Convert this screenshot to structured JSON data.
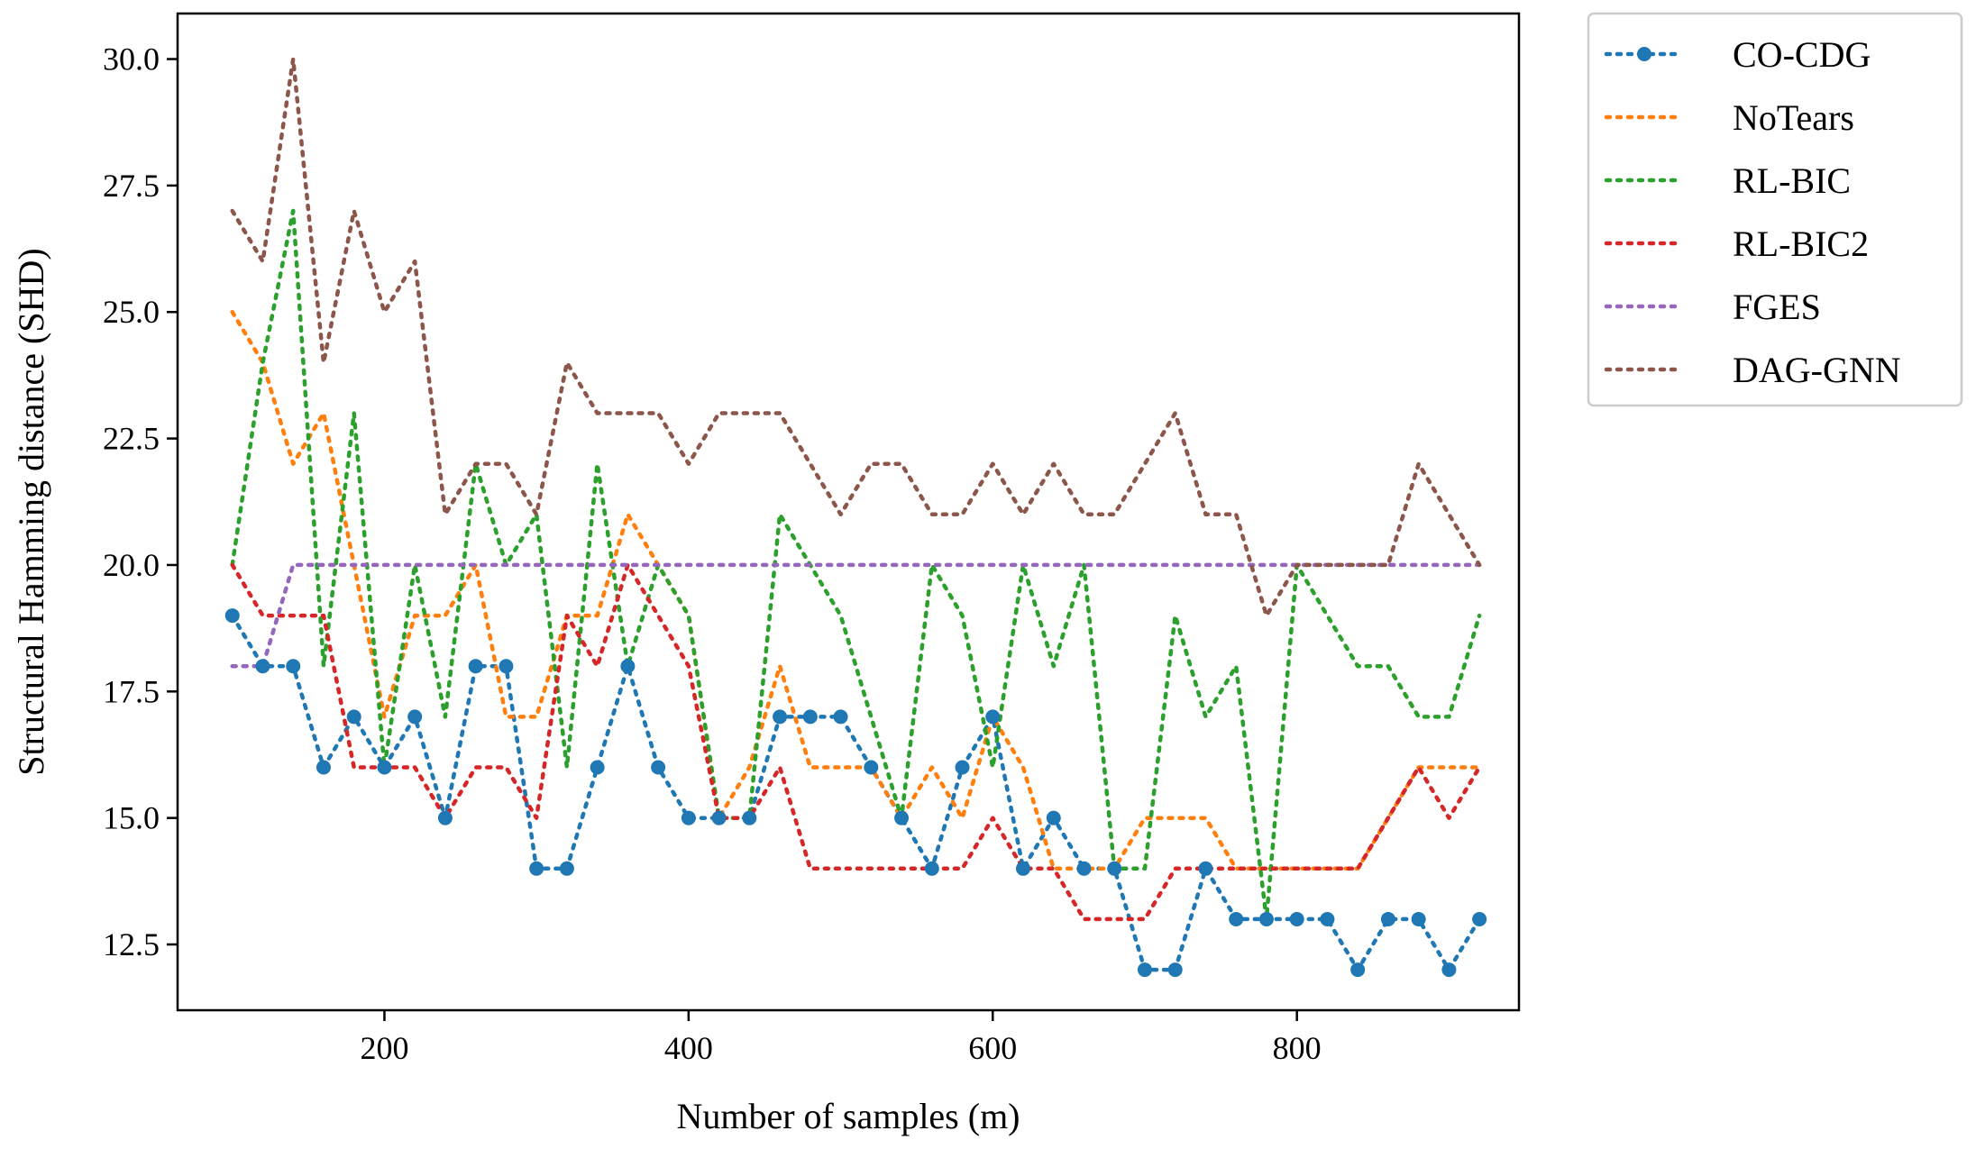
{
  "chart_data": {
    "type": "line",
    "title": "",
    "xlabel": "Number of samples (m)",
    "ylabel": "Structural Hamming distance (SHD)",
    "xlim": [
      64,
      946
    ],
    "ylim": [
      11.2,
      30.9
    ],
    "xticks": [
      200,
      400,
      600,
      800
    ],
    "yticks": [
      12.5,
      15.0,
      17.5,
      20.0,
      22.5,
      25.0,
      27.5,
      30.0
    ],
    "xtick_labels": [
      "200",
      "400",
      "600",
      "800"
    ],
    "ytick_labels": [
      "12.5",
      "15.0",
      "17.5",
      "20.0",
      "22.5",
      "25.0",
      "27.5",
      "30.0"
    ],
    "legend_position": "outside upper right",
    "x": [
      100,
      120,
      140,
      160,
      180,
      200,
      220,
      240,
      260,
      280,
      300,
      320,
      340,
      360,
      380,
      400,
      420,
      440,
      460,
      480,
      500,
      520,
      540,
      560,
      580,
      600,
      620,
      640,
      660,
      680,
      700,
      720,
      740,
      760,
      780,
      800,
      820,
      840,
      860,
      880,
      900,
      920
    ],
    "series": [
      {
        "name": "CO-CDG",
        "color": "#1f77b4",
        "markers": true,
        "values": [
          19,
          18,
          18,
          16,
          17,
          16,
          17,
          15,
          18,
          18,
          14,
          14,
          16,
          18,
          16,
          15,
          15,
          15,
          17,
          17,
          17,
          16,
          15,
          14,
          16,
          17,
          14,
          15,
          14,
          14,
          12,
          12,
          14,
          13,
          13,
          13,
          13,
          12,
          13,
          13,
          12,
          13
        ]
      },
      {
        "name": "NoTears",
        "color": "#ff7f0e",
        "markers": false,
        "values": [
          25,
          24,
          22,
          23,
          20,
          17,
          19,
          19,
          20,
          17,
          17,
          19,
          19,
          21,
          20,
          19,
          15,
          16,
          18,
          16,
          16,
          16,
          15,
          16,
          15,
          17,
          16,
          14,
          14,
          14,
          15,
          15,
          15,
          14,
          14,
          14,
          14,
          14,
          15,
          16,
          16,
          16
        ]
      },
      {
        "name": "RL-BIC",
        "color": "#2ca02c",
        "markers": false,
        "values": [
          20,
          24,
          27,
          18,
          23,
          16,
          20,
          17,
          22,
          20,
          21,
          16,
          22,
          18,
          20,
          19,
          15,
          15,
          21,
          20,
          19,
          17,
          15,
          20,
          19,
          16,
          20,
          18,
          20,
          14,
          14,
          19,
          17,
          18,
          13,
          20,
          19,
          18,
          18,
          17,
          17,
          19
        ]
      },
      {
        "name": "RL-BIC2",
        "color": "#d62728",
        "markers": false,
        "values": [
          20,
          19,
          19,
          19,
          16,
          16,
          16,
          15,
          16,
          16,
          15,
          19,
          18,
          20,
          19,
          18,
          15,
          15,
          16,
          14,
          14,
          14,
          14,
          14,
          14,
          15,
          14,
          14,
          13,
          13,
          13,
          14,
          14,
          14,
          14,
          14,
          14,
          14,
          15,
          16,
          15,
          16
        ]
      },
      {
        "name": "FGES",
        "color": "#9467bd",
        "markers": false,
        "values": [
          18,
          18,
          20,
          20,
          20,
          20,
          20,
          20,
          20,
          20,
          20,
          20,
          20,
          20,
          20,
          20,
          20,
          20,
          20,
          20,
          20,
          20,
          20,
          20,
          20,
          20,
          20,
          20,
          20,
          20,
          20,
          20,
          20,
          20,
          20,
          20,
          20,
          20,
          20,
          20,
          20,
          20
        ]
      },
      {
        "name": "DAG-GNN",
        "color": "#8c564b",
        "markers": false,
        "values": [
          27,
          26,
          30,
          24,
          27,
          25,
          26,
          21,
          22,
          22,
          21,
          24,
          23,
          23,
          23,
          22,
          23,
          23,
          23,
          22,
          21,
          22,
          22,
          21,
          21,
          22,
          21,
          22,
          21,
          21,
          22,
          23,
          21,
          21,
          19,
          20,
          20,
          20,
          20,
          22,
          21,
          20
        ]
      }
    ]
  }
}
